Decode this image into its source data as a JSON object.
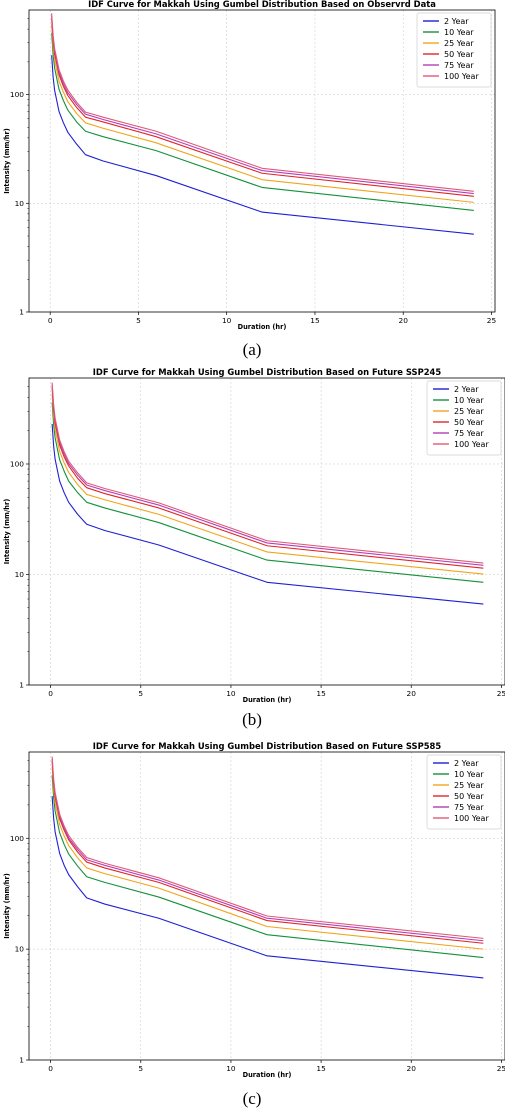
{
  "chart_data": [
    {
      "type": "line",
      "panel_label": "(a)",
      "title": "IDF Curve for Makkah Using Gumbel Distribution Based on Observrd Data",
      "xlabel": "Duration (hr)",
      "ylabel": "Intensity (mm/hr)",
      "xlim": [
        -1.2,
        25.2
      ],
      "ylim": [
        1,
        600
      ],
      "yscale": "log",
      "xticks": [
        0,
        5,
        10,
        15,
        20,
        25
      ],
      "yticks": [
        1,
        10,
        100
      ],
      "grid": true,
      "legend": "top-right",
      "x": [
        0.083,
        0.167,
        0.25,
        0.5,
        0.75,
        1,
        1.5,
        2,
        3,
        6,
        12,
        24
      ],
      "series": [
        {
          "name": "2 Year",
          "color": "#1f1fd6",
          "values": [
            230,
            145,
            110,
            70,
            55,
            45,
            35,
            28,
            24.5,
            18,
            8.3,
            5.2
          ]
        },
        {
          "name": "10 Year",
          "color": "#13913b",
          "values": [
            370,
            232,
            176,
            112,
            88,
            72,
            56,
            46,
            41,
            30.5,
            14,
            8.6
          ]
        },
        {
          "name": "25 Year",
          "color": "#f2a51c",
          "values": [
            440,
            276,
            209,
            133,
            105,
            86,
            67,
            55,
            49,
            36,
            16.5,
            10.2
          ]
        },
        {
          "name": "50 Year",
          "color": "#e0262a",
          "values": [
            500,
            313,
            238,
            152,
            119,
            98,
            76,
            62,
            56,
            41,
            18.9,
            11.6
          ]
        },
        {
          "name": "75 Year",
          "color": "#b43fb8",
          "values": [
            530,
            332,
            252,
            161,
            126,
            104,
            81,
            66,
            59,
            43.5,
            20,
            12.3
          ]
        },
        {
          "name": "100 Year",
          "color": "#e05a78",
          "values": [
            560,
            350,
            266,
            170,
            133,
            110,
            85,
            69,
            62,
            46,
            21,
            12.9
          ]
        }
      ]
    },
    {
      "type": "line",
      "panel_label": "(b)",
      "title": "IDF Curve for Makkah Using Gumbel Distribution Based on Future SSP245",
      "xlabel": "Duration (hr)",
      "ylabel": "Intensity (mm/hr)",
      "xlim": [
        -1.2,
        25.2
      ],
      "ylim": [
        1,
        600
      ],
      "yscale": "log",
      "xticks": [
        0,
        5,
        10,
        15,
        20,
        25
      ],
      "yticks": [
        1,
        10,
        100
      ],
      "grid": true,
      "legend": "top-right",
      "x": [
        0.083,
        0.167,
        0.25,
        0.5,
        0.75,
        1,
        1.5,
        2,
        3,
        6,
        12,
        24
      ],
      "series": [
        {
          "name": "2 Year",
          "color": "#1f1fd6",
          "values": [
            230,
            145,
            110,
            70,
            55,
            45,
            35,
            28.5,
            25,
            18.5,
            8.5,
            5.4
          ]
        },
        {
          "name": "10 Year",
          "color": "#13913b",
          "values": [
            360,
            226,
            172,
            109,
            86,
            70,
            55,
            45,
            40,
            29.5,
            13.5,
            8.5
          ]
        },
        {
          "name": "25 Year",
          "color": "#f2a51c",
          "values": [
            430,
            270,
            205,
            130,
            102,
            84,
            65,
            53,
            47.5,
            35,
            16,
            10.1
          ]
        },
        {
          "name": "50 Year",
          "color": "#e0262a",
          "values": [
            490,
            307,
            233,
            148,
            116,
            96,
            74,
            61,
            54,
            40,
            18.2,
            11.4
          ]
        },
        {
          "name": "75 Year",
          "color": "#b43fb8",
          "values": [
            520,
            326,
            247,
            157,
            123,
            101,
            79,
            64.5,
            57.5,
            42.5,
            19.3,
            12.1
          ]
        },
        {
          "name": "100 Year",
          "color": "#e05a78",
          "values": [
            545,
            342,
            259,
            165,
            129,
            106,
            83,
            67.5,
            60,
            44.5,
            20.2,
            12.7
          ]
        }
      ]
    },
    {
      "type": "line",
      "panel_label": "(c)",
      "title": "IDF Curve for Makkah Using Gumbel Distribution Based on Future SSP585",
      "xlabel": "Duration (hr)",
      "ylabel": "Intensity (mm/hr)",
      "xlim": [
        -1.2,
        25.2
      ],
      "ylim": [
        1,
        600
      ],
      "yscale": "log",
      "xticks": [
        0,
        5,
        10,
        15,
        20,
        25
      ],
      "yticks": [
        1,
        10,
        100
      ],
      "grid": true,
      "legend": "top-right",
      "x": [
        0.083,
        0.167,
        0.25,
        0.5,
        0.75,
        1,
        1.5,
        2,
        3,
        6,
        12,
        24
      ],
      "series": [
        {
          "name": "2 Year",
          "color": "#1f1fd6",
          "values": [
            240,
            151,
            114,
            73,
            57,
            47,
            36.5,
            29,
            25.5,
            19,
            8.7,
            5.5
          ]
        },
        {
          "name": "10 Year",
          "color": "#13913b",
          "values": [
            370,
            232,
            176,
            112,
            88,
            72,
            56,
            45,
            40,
            29.5,
            13.5,
            8.4
          ]
        },
        {
          "name": "25 Year",
          "color": "#f2a51c",
          "values": [
            440,
            276,
            209,
            133,
            105,
            86,
            66.5,
            54,
            48,
            35.5,
            16,
            10
          ]
        },
        {
          "name": "50 Year",
          "color": "#e0262a",
          "values": [
            495,
            310,
            236,
            150,
            118,
            97,
            75,
            61,
            54,
            40,
            18.1,
            11.3
          ]
        },
        {
          "name": "75 Year",
          "color": "#b43fb8",
          "values": [
            520,
            326,
            247,
            157,
            123,
            101,
            79,
            64,
            57,
            42,
            19,
            11.9
          ]
        },
        {
          "name": "100 Year",
          "color": "#e05a78",
          "values": [
            545,
            342,
            259,
            165,
            129,
            106,
            82.5,
            67,
            59.5,
            44,
            19.9,
            12.5
          ]
        }
      ]
    }
  ]
}
